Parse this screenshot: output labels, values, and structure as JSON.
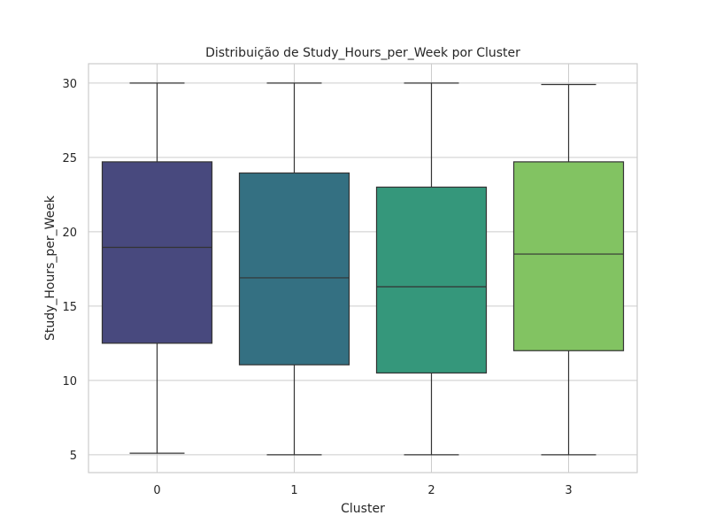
{
  "chart_data": {
    "type": "box",
    "title": "Distribuição de Study_Hours_per_Week por Cluster",
    "xlabel": "Cluster",
    "ylabel": "Study_Hours_per_Week",
    "categories": [
      "0",
      "1",
      "2",
      "3"
    ],
    "yticks": [
      5,
      10,
      15,
      20,
      25,
      30
    ],
    "ylim": [
      3.8,
      31.3
    ],
    "grid": true,
    "boxes": [
      {
        "category": "0",
        "min": 5.1,
        "q1": 12.5,
        "median": 18.95,
        "q3": 24.7,
        "max": 30.0,
        "color": "#48497e"
      },
      {
        "category": "1",
        "min": 5.0,
        "q1": 11.05,
        "median": 16.9,
        "q3": 23.95,
        "max": 30.0,
        "color": "#347082"
      },
      {
        "category": "2",
        "min": 5.0,
        "q1": 10.5,
        "median": 16.3,
        "q3": 23.0,
        "max": 30.0,
        "color": "#35977b"
      },
      {
        "category": "3",
        "min": 5.0,
        "q1": 12.0,
        "median": 18.5,
        "q3": 24.7,
        "max": 29.9,
        "color": "#82c362"
      }
    ]
  }
}
